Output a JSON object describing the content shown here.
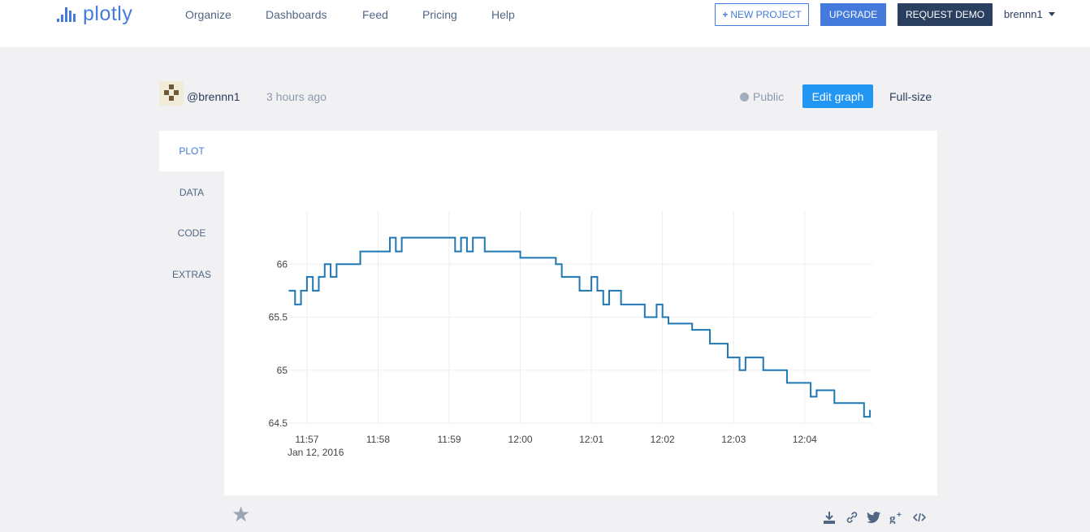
{
  "brand": {
    "logo_text": "plotly"
  },
  "nav": {
    "links": [
      "Organize",
      "Dashboards",
      "Feed",
      "Pricing",
      "Help"
    ],
    "new_project": "NEW PROJECT",
    "upgrade": "UPGRADE",
    "request_demo": "REQUEST DEMO",
    "username": "brennn1"
  },
  "meta": {
    "author": "@brennn1",
    "timestamp": "3 hours ago",
    "visibility": "Public",
    "edit_graph": "Edit graph",
    "full_size": "Full-size"
  },
  "tabs": [
    "PLOT",
    "DATA",
    "CODE",
    "EXTRAS"
  ],
  "icons": {
    "star": "star-icon",
    "download": "download-icon",
    "link": "link-icon",
    "twitter": "twitter-icon",
    "gplus": "google-plus-icon",
    "embed": "embed-icon"
  },
  "colors": {
    "accent": "#447adb",
    "edit": "#2196f3",
    "demo": "#2a3f5f",
    "line": "#1f77b4"
  },
  "chart_data": {
    "type": "line",
    "title": "",
    "xlabel": "",
    "ylabel": "",
    "x_date": "Jan 12, 2016",
    "x_ticks": [
      "11:57",
      "11:58",
      "11:59",
      "12:00",
      "12:01",
      "12:02",
      "12:03",
      "12:04"
    ],
    "y_ticks": [
      64.5,
      65,
      65.5,
      66
    ],
    "xlim": [
      "11:56:45",
      "12:04:57"
    ],
    "ylim": [
      64.5,
      66.5
    ],
    "grid": true,
    "series": [
      {
        "name": "",
        "color": "#1f77b4",
        "x": [
          "11:56:45",
          "11:56:50",
          "11:56:55",
          "11:57:00",
          "11:57:05",
          "11:57:10",
          "11:57:15",
          "11:57:20",
          "11:57:25",
          "11:57:30",
          "11:57:35",
          "11:57:40",
          "11:57:45",
          "11:57:50",
          "11:57:55",
          "11:58:00",
          "11:58:05",
          "11:58:10",
          "11:58:15",
          "11:58:20",
          "11:58:25",
          "11:58:30",
          "11:58:35",
          "11:58:40",
          "11:58:45",
          "11:58:50",
          "11:58:55",
          "11:59:00",
          "11:59:05",
          "11:59:10",
          "11:59:15",
          "11:59:20",
          "11:59:25",
          "11:59:30",
          "11:59:35",
          "11:59:40",
          "11:59:45",
          "11:59:50",
          "11:59:55",
          "12:00:00",
          "12:00:05",
          "12:00:10",
          "12:00:15",
          "12:00:20",
          "12:00:25",
          "12:00:30",
          "12:00:35",
          "12:00:40",
          "12:00:45",
          "12:00:50",
          "12:00:55",
          "12:01:00",
          "12:01:05",
          "12:01:10",
          "12:01:15",
          "12:01:20",
          "12:01:25",
          "12:01:30",
          "12:01:35",
          "12:01:40",
          "12:01:45",
          "12:01:50",
          "12:01:55",
          "12:02:00",
          "12:02:05",
          "12:02:10",
          "12:02:15",
          "12:02:20",
          "12:02:25",
          "12:02:30",
          "12:02:35",
          "12:02:40",
          "12:02:45",
          "12:02:50",
          "12:02:55",
          "12:03:00",
          "12:03:05",
          "12:03:10",
          "12:03:15",
          "12:03:20",
          "12:03:25",
          "12:03:30",
          "12:03:35",
          "12:03:40",
          "12:03:45",
          "12:03:50",
          "12:03:55",
          "12:04:00",
          "12:04:05",
          "12:04:10",
          "12:04:15",
          "12:04:20",
          "12:04:25",
          "12:04:30",
          "12:04:35",
          "12:04:40",
          "12:04:45",
          "12:04:50",
          "12:04:55"
        ],
        "y": [
          65.75,
          65.62,
          65.75,
          65.88,
          65.75,
          65.88,
          66.0,
          65.88,
          66.0,
          66.0,
          66.0,
          66.0,
          66.12,
          66.12,
          66.12,
          66.12,
          66.12,
          66.25,
          66.12,
          66.25,
          66.25,
          66.25,
          66.25,
          66.25,
          66.25,
          66.25,
          66.25,
          66.25,
          66.12,
          66.25,
          66.12,
          66.25,
          66.25,
          66.12,
          66.12,
          66.12,
          66.12,
          66.12,
          66.12,
          66.06,
          66.06,
          66.06,
          66.06,
          66.06,
          66.06,
          66.0,
          65.88,
          65.88,
          65.88,
          65.75,
          65.75,
          65.88,
          65.75,
          65.62,
          65.75,
          65.75,
          65.62,
          65.62,
          65.62,
          65.62,
          65.5,
          65.5,
          65.62,
          65.5,
          65.44,
          65.44,
          65.44,
          65.44,
          65.38,
          65.38,
          65.38,
          65.25,
          65.25,
          65.25,
          65.12,
          65.12,
          65.0,
          65.12,
          65.12,
          65.12,
          65.0,
          65.0,
          65.0,
          65.0,
          64.88,
          64.88,
          64.88,
          64.88,
          64.75,
          64.81,
          64.81,
          64.81,
          64.69,
          64.69,
          64.69,
          64.69,
          64.69,
          64.56,
          64.62
        ]
      }
    ]
  }
}
